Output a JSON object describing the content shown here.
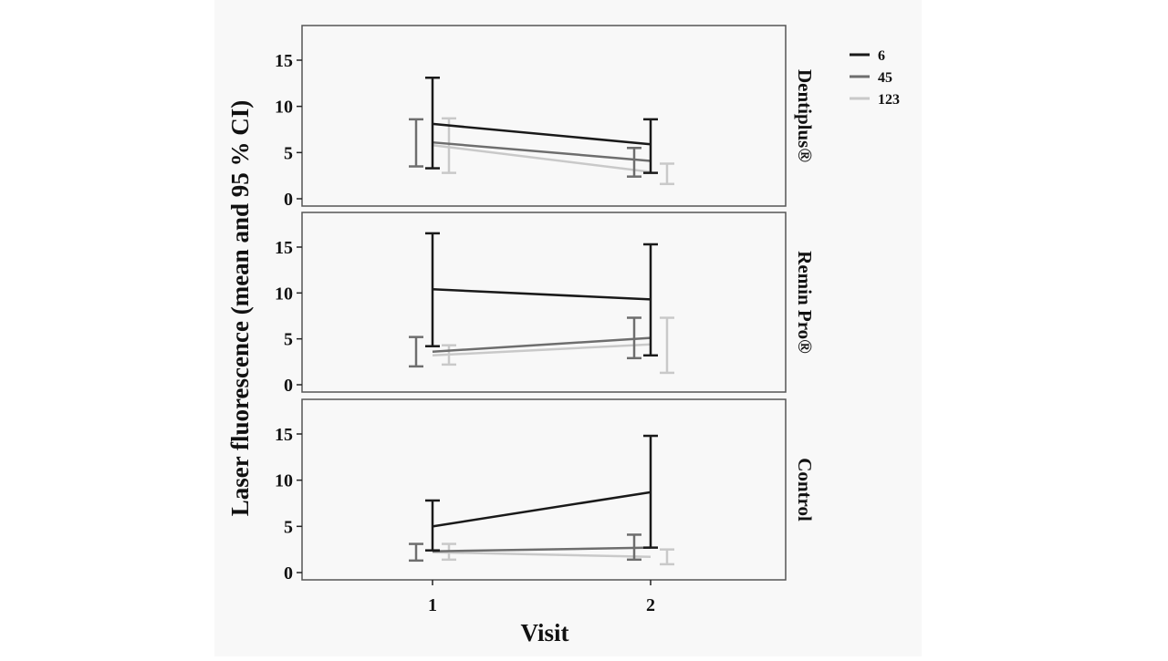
{
  "chart_data": {
    "type": "line",
    "ylabel": "Laser fluorescence (mean and 95 % CI)",
    "xlabel": "Visit",
    "x": [
      1,
      2
    ],
    "x_tick_labels": [
      "1",
      "2"
    ],
    "ylim": [
      0,
      18
    ],
    "y_ticks": [
      0,
      5,
      10,
      15
    ],
    "y_tick_labels": [
      "0",
      "5",
      "10",
      "15"
    ],
    "grid": false,
    "legend_position": "top-right",
    "legend": [
      {
        "label": "6",
        "color": "#1a1a1a"
      },
      {
        "label": "45",
        "color": "#6e6e6e"
      },
      {
        "label": "123",
        "color": "#c9c9c9"
      }
    ],
    "panels": [
      {
        "label": "Dentiplus®",
        "series": [
          {
            "name": "6",
            "mean": [
              8.1,
              5.9
            ],
            "lower": [
              3.3,
              2.8
            ],
            "upper": [
              13.1,
              8.6
            ]
          },
          {
            "name": "45",
            "mean": [
              6.1,
              4.1
            ],
            "lower": [
              3.5,
              2.4
            ],
            "upper": [
              8.6,
              5.5
            ]
          },
          {
            "name": "123",
            "mean": [
              5.8,
              2.9
            ],
            "lower": [
              2.8,
              1.6
            ],
            "upper": [
              8.7,
              3.8
            ]
          }
        ]
      },
      {
        "label": "Remin Pro®",
        "series": [
          {
            "name": "6",
            "mean": [
              10.4,
              9.3
            ],
            "lower": [
              4.2,
              3.2
            ],
            "upper": [
              16.5,
              15.3
            ]
          },
          {
            "name": "45",
            "mean": [
              3.6,
              5.1
            ],
            "lower": [
              2.0,
              2.9
            ],
            "upper": [
              5.2,
              7.3
            ]
          },
          {
            "name": "123",
            "mean": [
              3.2,
              4.4
            ],
            "lower": [
              2.2,
              1.3
            ],
            "upper": [
              4.3,
              7.3
            ]
          }
        ]
      },
      {
        "label": "Control",
        "series": [
          {
            "name": "6",
            "mean": [
              5.0,
              8.7
            ],
            "lower": [
              2.4,
              2.7
            ],
            "upper": [
              7.8,
              14.8
            ]
          },
          {
            "name": "45",
            "mean": [
              2.3,
              2.7
            ],
            "lower": [
              1.3,
              1.4
            ],
            "upper": [
              3.1,
              4.1
            ]
          },
          {
            "name": "123",
            "mean": [
              2.2,
              1.7
            ],
            "lower": [
              1.4,
              0.9
            ],
            "upper": [
              3.1,
              2.5
            ]
          }
        ]
      }
    ]
  }
}
